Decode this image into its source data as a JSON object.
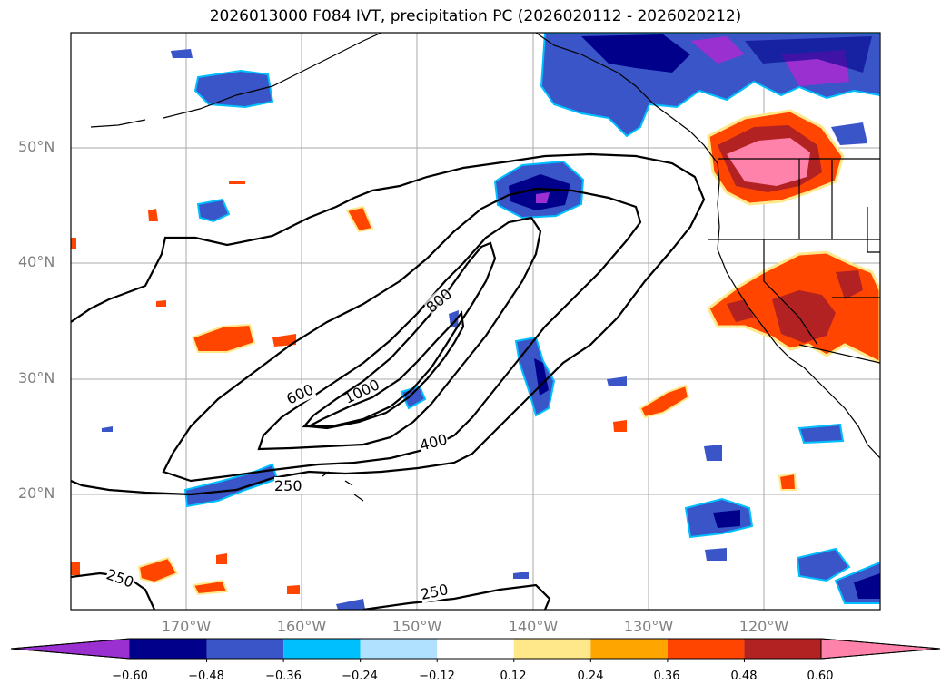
{
  "title": "2026013000 F084 IVT, precipitation PC (2026020112 - 2026020212)",
  "axes": {
    "lat_ticks": [
      "50°N",
      "40°N",
      "30°N",
      "20°N"
    ],
    "lon_ticks": [
      "170°W",
      "160°W",
      "150°W",
      "140°W",
      "130°W",
      "120°W"
    ]
  },
  "contour_labels": [
    "800",
    "1000",
    "600",
    "400",
    "250",
    "250",
    "250"
  ],
  "colorbar": {
    "ticks": [
      "−0.60",
      "−0.48",
      "−0.36",
      "−0.24",
      "−0.12",
      "0.12",
      "0.24",
      "0.36",
      "0.48",
      "0.60"
    ],
    "colors": [
      "#9b30d0",
      "#00008b",
      "#3a55c8",
      "#00bfff",
      "#b0e2ff",
      "#ffffff",
      "#ffe88a",
      "#ffa500",
      "#ff4500",
      "#b22222",
      "#ff82ab"
    ]
  },
  "chart_data": {
    "type": "contour-map",
    "title": "2026013000 F084 IVT, precipitation PC (2026020112 - 2026020212)",
    "ivt_contour_levels": [
      250,
      400,
      600,
      800,
      1000
    ],
    "precip_pc_levels": [
      -0.6,
      -0.48,
      -0.36,
      -0.24,
      -0.12,
      0.12,
      0.24,
      0.36,
      0.48,
      0.6
    ],
    "lon_range": [
      -180,
      -110
    ],
    "lat_range": [
      10,
      60
    ]
  }
}
